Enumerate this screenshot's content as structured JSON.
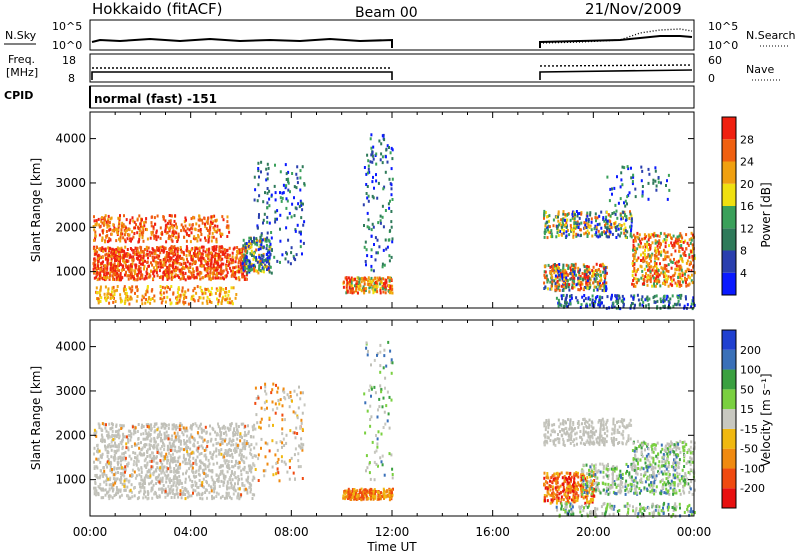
{
  "header": {
    "station": "Hokkaido (fitACF)",
    "beam": "Beam 00",
    "date": "21/Nov/2009"
  },
  "top_panels": {
    "nsky_label": "N.Sky",
    "nsearch_label": "N.Search",
    "nsky_ticks": [
      "10^5",
      "10^0"
    ],
    "nsearch_ticks": [
      "10^5",
      "10^0"
    ],
    "freq_label_1": "Freq.",
    "freq_label_2": "[MHz]",
    "freq_ticks": [
      "18",
      "8"
    ],
    "nave_label": "Nave",
    "nave_ticks": [
      "60",
      "0"
    ],
    "cpid_label": "CPID",
    "cpid_value": "normal (fast) -151"
  },
  "colors": {
    "power_scale": [
      "#0a1aff",
      "#2a3fae",
      "#2f7a5a",
      "#3aa05a",
      "#f0e010",
      "#f0a010",
      "#f06010",
      "#f02010"
    ],
    "velocity_scale": [
      "#e81010",
      "#f04a10",
      "#f08a10",
      "#f0b810",
      "#c8c8c0",
      "#7ad040",
      "#3aa040",
      "#3a70b8",
      "#2040d0"
    ],
    "ground_scatter": "#c0c0b8"
  },
  "chart_data": [
    {
      "type": "heatmap",
      "title": "",
      "xlabel": "Time UT",
      "ylabel": "Slant Range [km]",
      "xlim_hours": [
        0,
        24
      ],
      "ylim": [
        180,
        4600
      ],
      "x_ticks": [
        "00:00",
        "04:00",
        "08:00",
        "12:00",
        "16:00",
        "20:00",
        "00:00"
      ],
      "y_ticks": [
        "1000",
        "2000",
        "3000",
        "4000"
      ],
      "y_tick_values": [
        1000,
        2000,
        3000,
        4000
      ],
      "colorbar_label": "Power [dB]",
      "colorbar_ticks": [
        "4",
        "8",
        "12",
        "16",
        "20",
        "24",
        "28"
      ],
      "colorbar_range": [
        0,
        32
      ],
      "data_gaps_hours": [
        [
          12.0,
          18.0
        ]
      ]
    },
    {
      "type": "heatmap",
      "title": "",
      "xlabel": "Time UT",
      "ylabel": "Slant Range [km]",
      "xlim_hours": [
        0,
        24
      ],
      "ylim": [
        180,
        4600
      ],
      "x_ticks": [
        "00:00",
        "04:00",
        "08:00",
        "12:00",
        "16:00",
        "20:00",
        "00:00"
      ],
      "y_ticks": [
        "1000",
        "2000",
        "3000",
        "4000"
      ],
      "y_tick_values": [
        1000,
        2000,
        3000,
        4000
      ],
      "colorbar_label": "Velocity [m s⁻¹]",
      "colorbar_ticks": [
        "200",
        "100",
        "50",
        "15",
        "-15",
        "-50",
        "-100",
        "-200"
      ],
      "data_gaps_hours": [
        [
          12.0,
          18.0
        ]
      ]
    }
  ]
}
